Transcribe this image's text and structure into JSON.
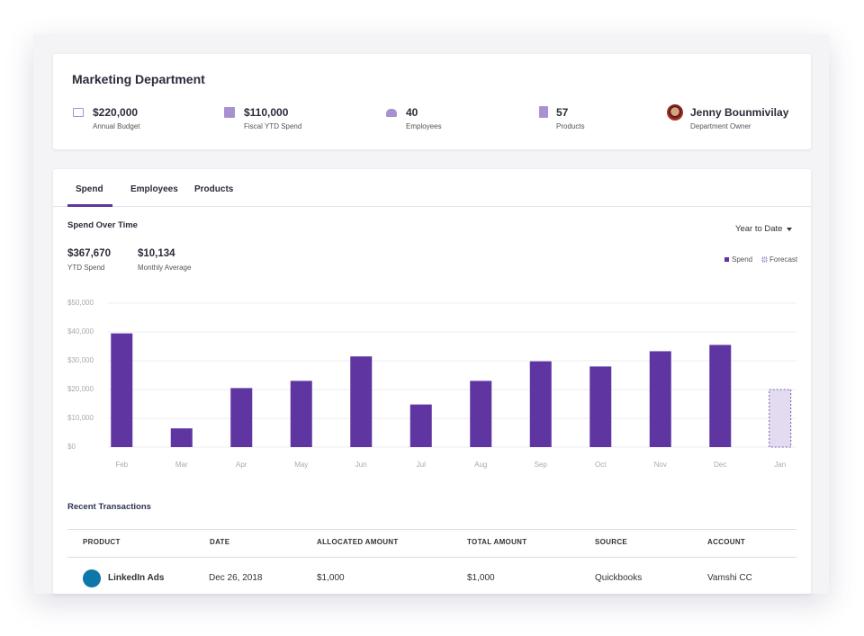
{
  "header": {
    "title": "Marketing Department",
    "stats": [
      {
        "value": "$220,000",
        "label": "Annual Budget"
      },
      {
        "value": "$110,000",
        "label": "Fiscal YTD Spend"
      },
      {
        "value": "40",
        "label": "Employees"
      },
      {
        "value": "57",
        "label": "Products"
      },
      {
        "value": "Jenny Bounmivilay",
        "label": "Department Owner"
      }
    ]
  },
  "tabs": [
    "Spend",
    "Employees",
    "Products"
  ],
  "spend": {
    "title": "Spend Over Time",
    "period": "Year to Date",
    "summary": [
      {
        "value": "$367,670",
        "label": "YTD Spend"
      },
      {
        "value": "$10,134",
        "label": "Monthly Average"
      }
    ]
  },
  "chart_data": {
    "type": "bar",
    "categories": [
      "Feb",
      "Mar",
      "Apr",
      "May",
      "Jun",
      "Jul",
      "Aug",
      "Sep",
      "Oct",
      "Nov",
      "Dec",
      "Jan"
    ],
    "series": [
      {
        "name": "Spend",
        "color": "#5e35a1",
        "values": [
          39500,
          6500,
          20500,
          23000,
          31500,
          14800,
          23000,
          29800,
          28000,
          33300,
          35500,
          null
        ]
      },
      {
        "name": "Forecast",
        "color": "#e3dbf0",
        "values": [
          null,
          null,
          null,
          null,
          null,
          null,
          null,
          null,
          null,
          null,
          null,
          20000
        ]
      }
    ],
    "ylim": [
      0,
      50000
    ],
    "yticks": [
      {
        "value": 0,
        "label": "$0"
      },
      {
        "value": 10000,
        "label": "$10,000"
      },
      {
        "value": 20000,
        "label": "$20,000"
      },
      {
        "value": 30000,
        "label": "$30,000"
      },
      {
        "value": 40000,
        "label": "$40,000"
      },
      {
        "value": 50000,
        "label": "$50,000"
      }
    ],
    "grid": true
  },
  "transactions": {
    "title": "Recent Transactions",
    "columns": [
      "PRODUCT",
      "DATE",
      "ALLOCATED AMOUNT",
      "TOTAL AMOUNT",
      "SOURCE",
      "ACCOUNT"
    ],
    "rows": [
      [
        "LinkedIn Ads",
        "Dec 26, 2018",
        "$1,000",
        "$1,000",
        "Quickbooks",
        "Vamshi CC"
      ]
    ]
  }
}
